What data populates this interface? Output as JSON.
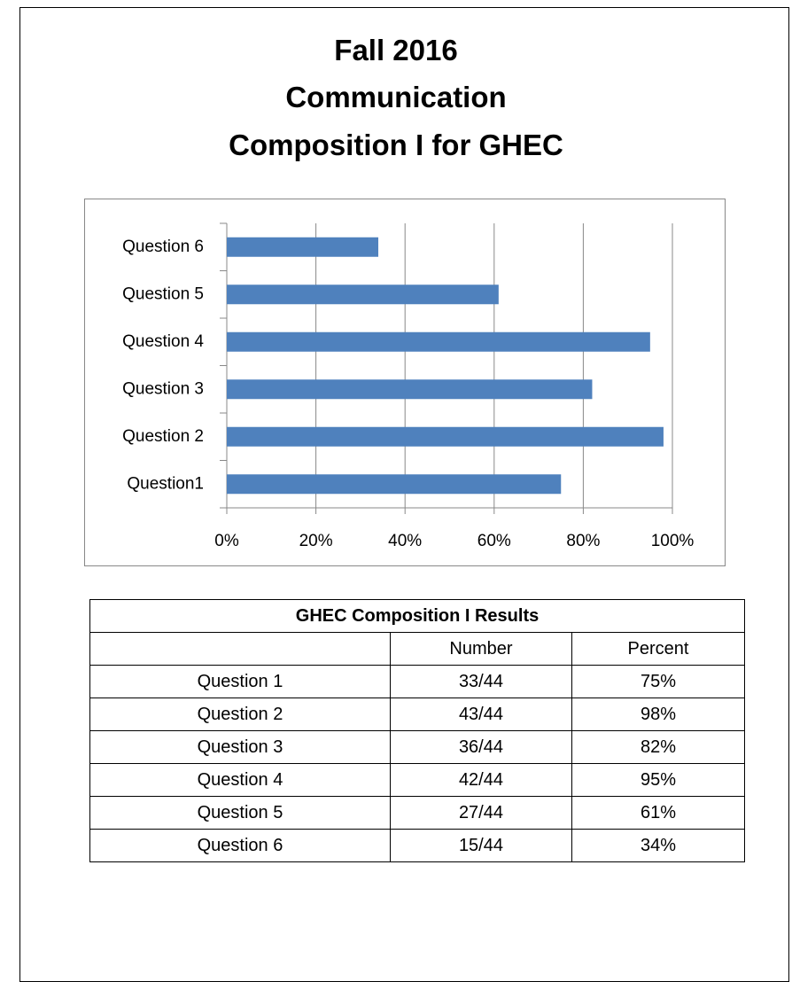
{
  "header": {
    "lines": [
      "Fall 2016",
      "Communication",
      "Composition I for GHEC"
    ]
  },
  "chart_data": {
    "type": "bar",
    "orientation": "horizontal",
    "categories": [
      "Question1",
      "Question 2",
      "Question 3",
      "Question 4",
      "Question 5",
      "Question 6"
    ],
    "values": [
      75,
      98,
      82,
      95,
      61,
      34
    ],
    "color": "#4f81bd",
    "xlim": [
      0,
      100
    ],
    "xticks": [
      {
        "value": 0,
        "label": "0%"
      },
      {
        "value": 20,
        "label": "20%"
      },
      {
        "value": 40,
        "label": "40%"
      },
      {
        "value": 60,
        "label": "60%"
      },
      {
        "value": 80,
        "label": "80%"
      },
      {
        "value": 100,
        "label": "100%"
      }
    ],
    "grid": true
  },
  "table": {
    "title": "GHEC Composition I Results",
    "columns": [
      "Number",
      "Percent"
    ],
    "rows": [
      [
        "Question 1",
        "33/44",
        "75%"
      ],
      [
        "Question 2",
        "43/44",
        "98%"
      ],
      [
        "Question 3",
        "36/44",
        "82%"
      ],
      [
        "Question 4",
        "42/44",
        "95%"
      ],
      [
        "Question 5",
        "27/44",
        "61%"
      ],
      [
        "Question 6",
        "15/44",
        "34%"
      ]
    ]
  }
}
